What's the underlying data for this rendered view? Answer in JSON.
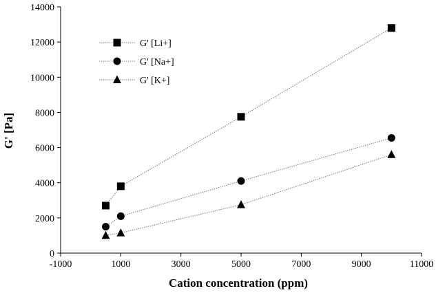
{
  "chart_data": {
    "type": "scatter",
    "xlabel": "Cation  concentration (ppm)",
    "ylabel": "G' [Pa]",
    "xlim": [
      -1000,
      11000
    ],
    "ylim": [
      0,
      14000
    ],
    "x_ticks": [
      "-1000",
      "1000",
      "3000",
      "5000",
      "7000",
      "9000",
      "11000"
    ],
    "y_ticks": [
      "0",
      "2000",
      "4000",
      "6000",
      "8000",
      "10000",
      "12000",
      "14000"
    ],
    "grid": false,
    "legend_position": "top-left",
    "series": [
      {
        "name": "G' [Li+]",
        "marker": "square",
        "x": [
          500,
          1000,
          5000,
          10000
        ],
        "y": [
          2700,
          3800,
          7750,
          12800
        ]
      },
      {
        "name": "G' [Na+]",
        "marker": "circle",
        "x": [
          500,
          1000,
          5000,
          10000
        ],
        "y": [
          1500,
          2100,
          4100,
          6550
        ]
      },
      {
        "name": "G' [K+]",
        "marker": "triangle",
        "x": [
          500,
          1000,
          5000,
          10000
        ],
        "y": [
          1000,
          1150,
          2750,
          5600
        ]
      }
    ],
    "colors": {
      "marker": "#000000",
      "line": "#777777",
      "axis": "#000000"
    }
  }
}
